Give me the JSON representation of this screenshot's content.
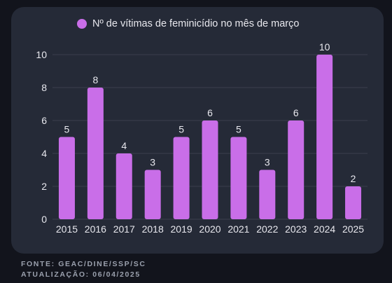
{
  "chart_data": {
    "type": "bar",
    "categories": [
      "2015",
      "2016",
      "2017",
      "2018",
      "2019",
      "2020",
      "2021",
      "2022",
      "2023",
      "2024",
      "2025"
    ],
    "series": [
      {
        "name": "Nº de vítimas de feminicídio no mês de março",
        "values": [
          5,
          8,
          4,
          3,
          5,
          6,
          5,
          3,
          6,
          10,
          2
        ]
      }
    ],
    "ylim": [
      0,
      10
    ],
    "yticks": [
      0,
      2,
      4,
      6,
      8,
      10
    ],
    "grid": true,
    "legend": "top-center",
    "bar_color": "#c96ee8",
    "data_labels": true
  },
  "footer": {
    "source": "FONTE: GEAC/DINE/SSP/SC",
    "updated": "ATUALIZAÇÃO: 06/04/2025"
  },
  "colors": {
    "background": "#12141c",
    "card": "#252a37",
    "grid": "#3a3f4c",
    "text": "#e8e8ee",
    "footer": "#9aa0ad"
  }
}
